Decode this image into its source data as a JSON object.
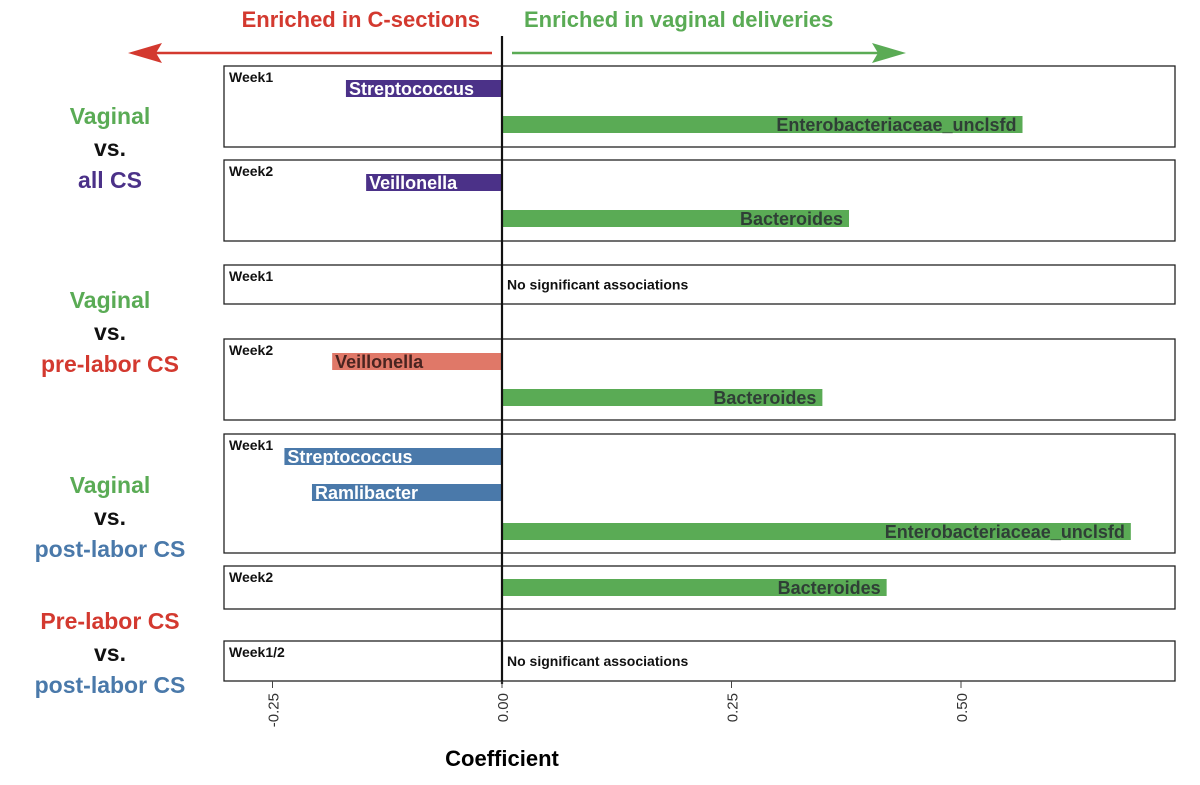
{
  "chart_data": {
    "type": "bar",
    "orientation": "horizontal",
    "xlabel": "Coefficient",
    "xlim": [
      -0.3,
      0.73
    ],
    "xticks": [
      -0.25,
      0.0,
      0.25,
      0.5
    ],
    "xtick_labels": [
      "-0.25",
      "0.00",
      "0.25",
      "0.50"
    ],
    "grid": false,
    "direction_labels": {
      "left": "Enriched in C-sections",
      "right": "Enriched in vaginal deliveries"
    },
    "colors": {
      "vaginal": "#5aab55",
      "all_cs": "#4b3188",
      "prelabor_cs": "#d3392f",
      "prelabor_cs_bar": "#e07868",
      "postlabor_cs": "#4a79aa",
      "left_arrow": "#d3392f",
      "right_arrow": "#5aab55"
    },
    "comparisons": [
      {
        "lines": [
          {
            "text": "Vaginal",
            "color": "vaginal"
          },
          {
            "text": "vs.",
            "color": "black"
          },
          {
            "text": "all CS",
            "color": "all_cs"
          }
        ]
      },
      {
        "lines": [
          {
            "text": "Vaginal",
            "color": "vaginal"
          },
          {
            "text": "vs.",
            "color": "black"
          },
          {
            "text": "pre-labor CS",
            "color": "prelabor_cs"
          }
        ]
      },
      {
        "lines": [
          {
            "text": "Vaginal",
            "color": "vaginal"
          },
          {
            "text": "vs.",
            "color": "black"
          },
          {
            "text": "post-labor CS",
            "color": "postlabor_cs"
          }
        ]
      },
      {
        "lines": [
          {
            "text": "Pre-labor CS",
            "color": "prelabor_cs"
          },
          {
            "text": "vs.",
            "color": "black"
          },
          {
            "text": "post-labor CS",
            "color": "postlabor_cs"
          }
        ]
      }
    ],
    "panels": [
      {
        "group": 0,
        "label": "Week1",
        "note": "",
        "bars": [
          {
            "taxon": "Streptococcus",
            "value": -0.17,
            "color": "all_cs"
          },
          {
            "taxon": "Enterobacteriaceae_unclsfd",
            "value": 0.567,
            "color": "vaginal"
          }
        ]
      },
      {
        "group": 0,
        "label": "Week2",
        "note": "",
        "bars": [
          {
            "taxon": "Veillonella",
            "value": -0.148,
            "color": "all_cs"
          },
          {
            "taxon": "Bacteroides",
            "value": 0.378,
            "color": "vaginal"
          }
        ]
      },
      {
        "group": 1,
        "label": "Week1",
        "note": "No significant associations",
        "bars": []
      },
      {
        "group": 1,
        "label": "Week2",
        "note": "",
        "bars": [
          {
            "taxon": "Veillonella",
            "value": -0.185,
            "color": "prelabor_cs_bar"
          },
          {
            "taxon": "Bacteroides",
            "value": 0.349,
            "color": "vaginal"
          }
        ]
      },
      {
        "group": 2,
        "label": "Week1",
        "note": "",
        "bars": [
          {
            "taxon": "Streptococcus",
            "value": -0.237,
            "color": "postlabor_cs"
          },
          {
            "taxon": "Ramlibacter",
            "value": -0.207,
            "color": "postlabor_cs"
          },
          {
            "taxon": "Enterobacteriaceae_unclsfd",
            "value": 0.685,
            "color": "vaginal"
          }
        ]
      },
      {
        "group": 2,
        "label": "Week2",
        "note": "",
        "bars": [
          {
            "taxon": "Bacteroides",
            "value": 0.419,
            "color": "vaginal"
          }
        ]
      },
      {
        "group": 3,
        "label": "Week1/2",
        "note": "No significant associations",
        "bars": []
      }
    ]
  }
}
